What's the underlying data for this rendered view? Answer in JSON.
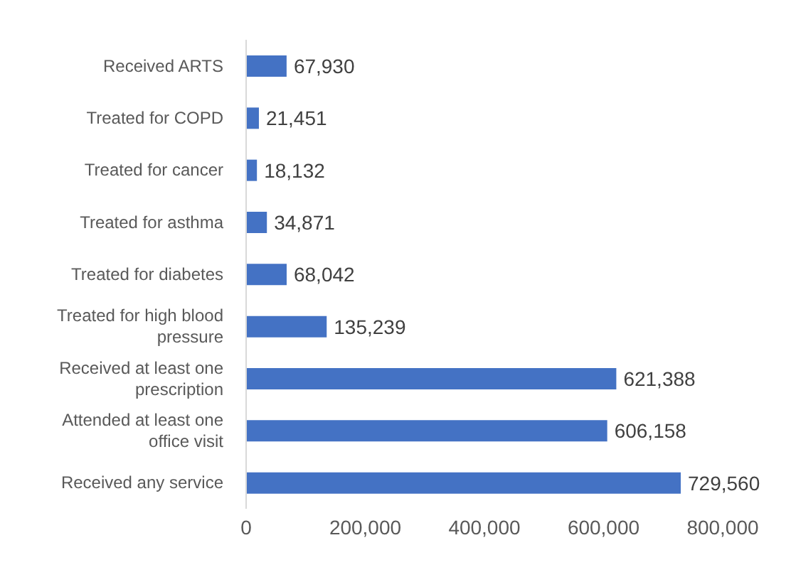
{
  "chart_data": {
    "type": "bar",
    "orientation": "horizontal",
    "categories": [
      "Received ARTS",
      "Treated for COPD",
      "Treated for cancer",
      "Treated for asthma",
      "Treated for diabetes",
      "Treated for high blood pressure",
      "Received at least one prescription",
      "Attended at least one office visit",
      "Received any service"
    ],
    "values": [
      67930,
      21451,
      18132,
      34871,
      68042,
      135239,
      621388,
      606158,
      729560
    ],
    "value_labels": [
      "67,930",
      "21,451",
      "18,132",
      "34,871",
      "68,042",
      "135,239",
      "621,388",
      "606,158",
      "729,560"
    ],
    "color": "#4472c4",
    "xlim": [
      0,
      800000
    ],
    "xticks": [
      0,
      {
        "value": 200000,
        "label": "200,000"
      },
      {
        "value": 400000,
        "label": "400,000"
      },
      {
        "value": 600000,
        "label": "600,000"
      },
      {
        "value": 800000,
        "label": "800,000"
      }
    ],
    "grid": false
  }
}
